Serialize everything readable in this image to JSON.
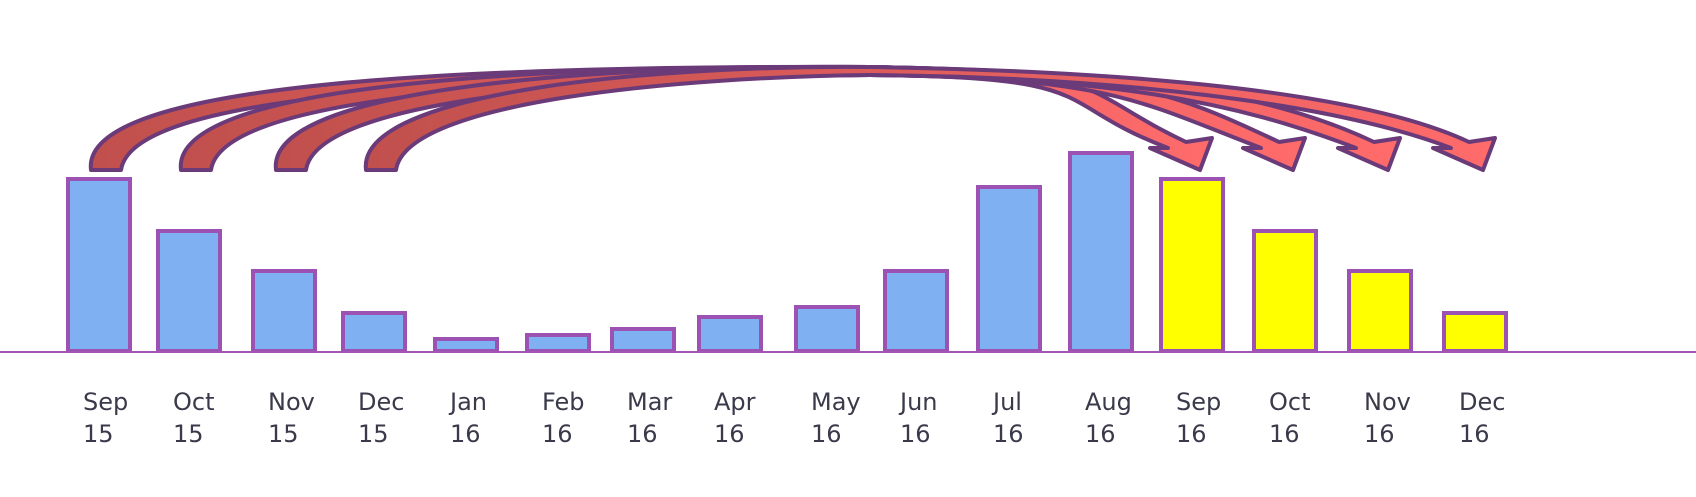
{
  "colors": {
    "baseline": "#a355b5",
    "bar_stroke": "#9b52b2",
    "actual_fill": "#7fb0f2",
    "projected_fill": "#ffff00",
    "arrow_stroke": "#6b3a78",
    "arrow_fill_left": "#c0504d",
    "arrow_fill_right": "#ff6b6b"
  },
  "chart_data": {
    "type": "bar",
    "title": "",
    "xlabel": "",
    "ylabel": "",
    "ylim": [
      0,
      100
    ],
    "axis_visible": false,
    "grid": false,
    "categories": [
      {
        "month": "Sep",
        "year": "15"
      },
      {
        "month": "Oct",
        "year": "15"
      },
      {
        "month": "Nov",
        "year": "15"
      },
      {
        "month": "Dec",
        "year": "15"
      },
      {
        "month": "Jan",
        "year": "16"
      },
      {
        "month": "Feb",
        "year": "16"
      },
      {
        "month": "Mar",
        "year": "16"
      },
      {
        "month": "Apr",
        "year": "16"
      },
      {
        "month": "May",
        "year": "16"
      },
      {
        "month": "Jun",
        "year": "16"
      },
      {
        "month": "Jul",
        "year": "16"
      },
      {
        "month": "Aug",
        "year": "16"
      },
      {
        "month": "Sep",
        "year": "16"
      },
      {
        "month": "Oct",
        "year": "16"
      },
      {
        "month": "Nov",
        "year": "16"
      },
      {
        "month": "Dec",
        "year": "16"
      }
    ],
    "values": [
      86,
      60,
      40,
      19,
      6,
      8,
      11,
      17,
      22,
      40,
      82,
      99,
      86,
      60,
      40,
      19
    ],
    "bar_kind": [
      "actual",
      "actual",
      "actual",
      "actual",
      "actual",
      "actual",
      "actual",
      "actual",
      "actual",
      "actual",
      "actual",
      "actual",
      "projected",
      "projected",
      "projected",
      "projected"
    ],
    "arrows": [
      {
        "from": 0,
        "to": 12
      },
      {
        "from": 1,
        "to": 13
      },
      {
        "from": 2,
        "to": 14
      },
      {
        "from": 3,
        "to": 15
      }
    ]
  }
}
